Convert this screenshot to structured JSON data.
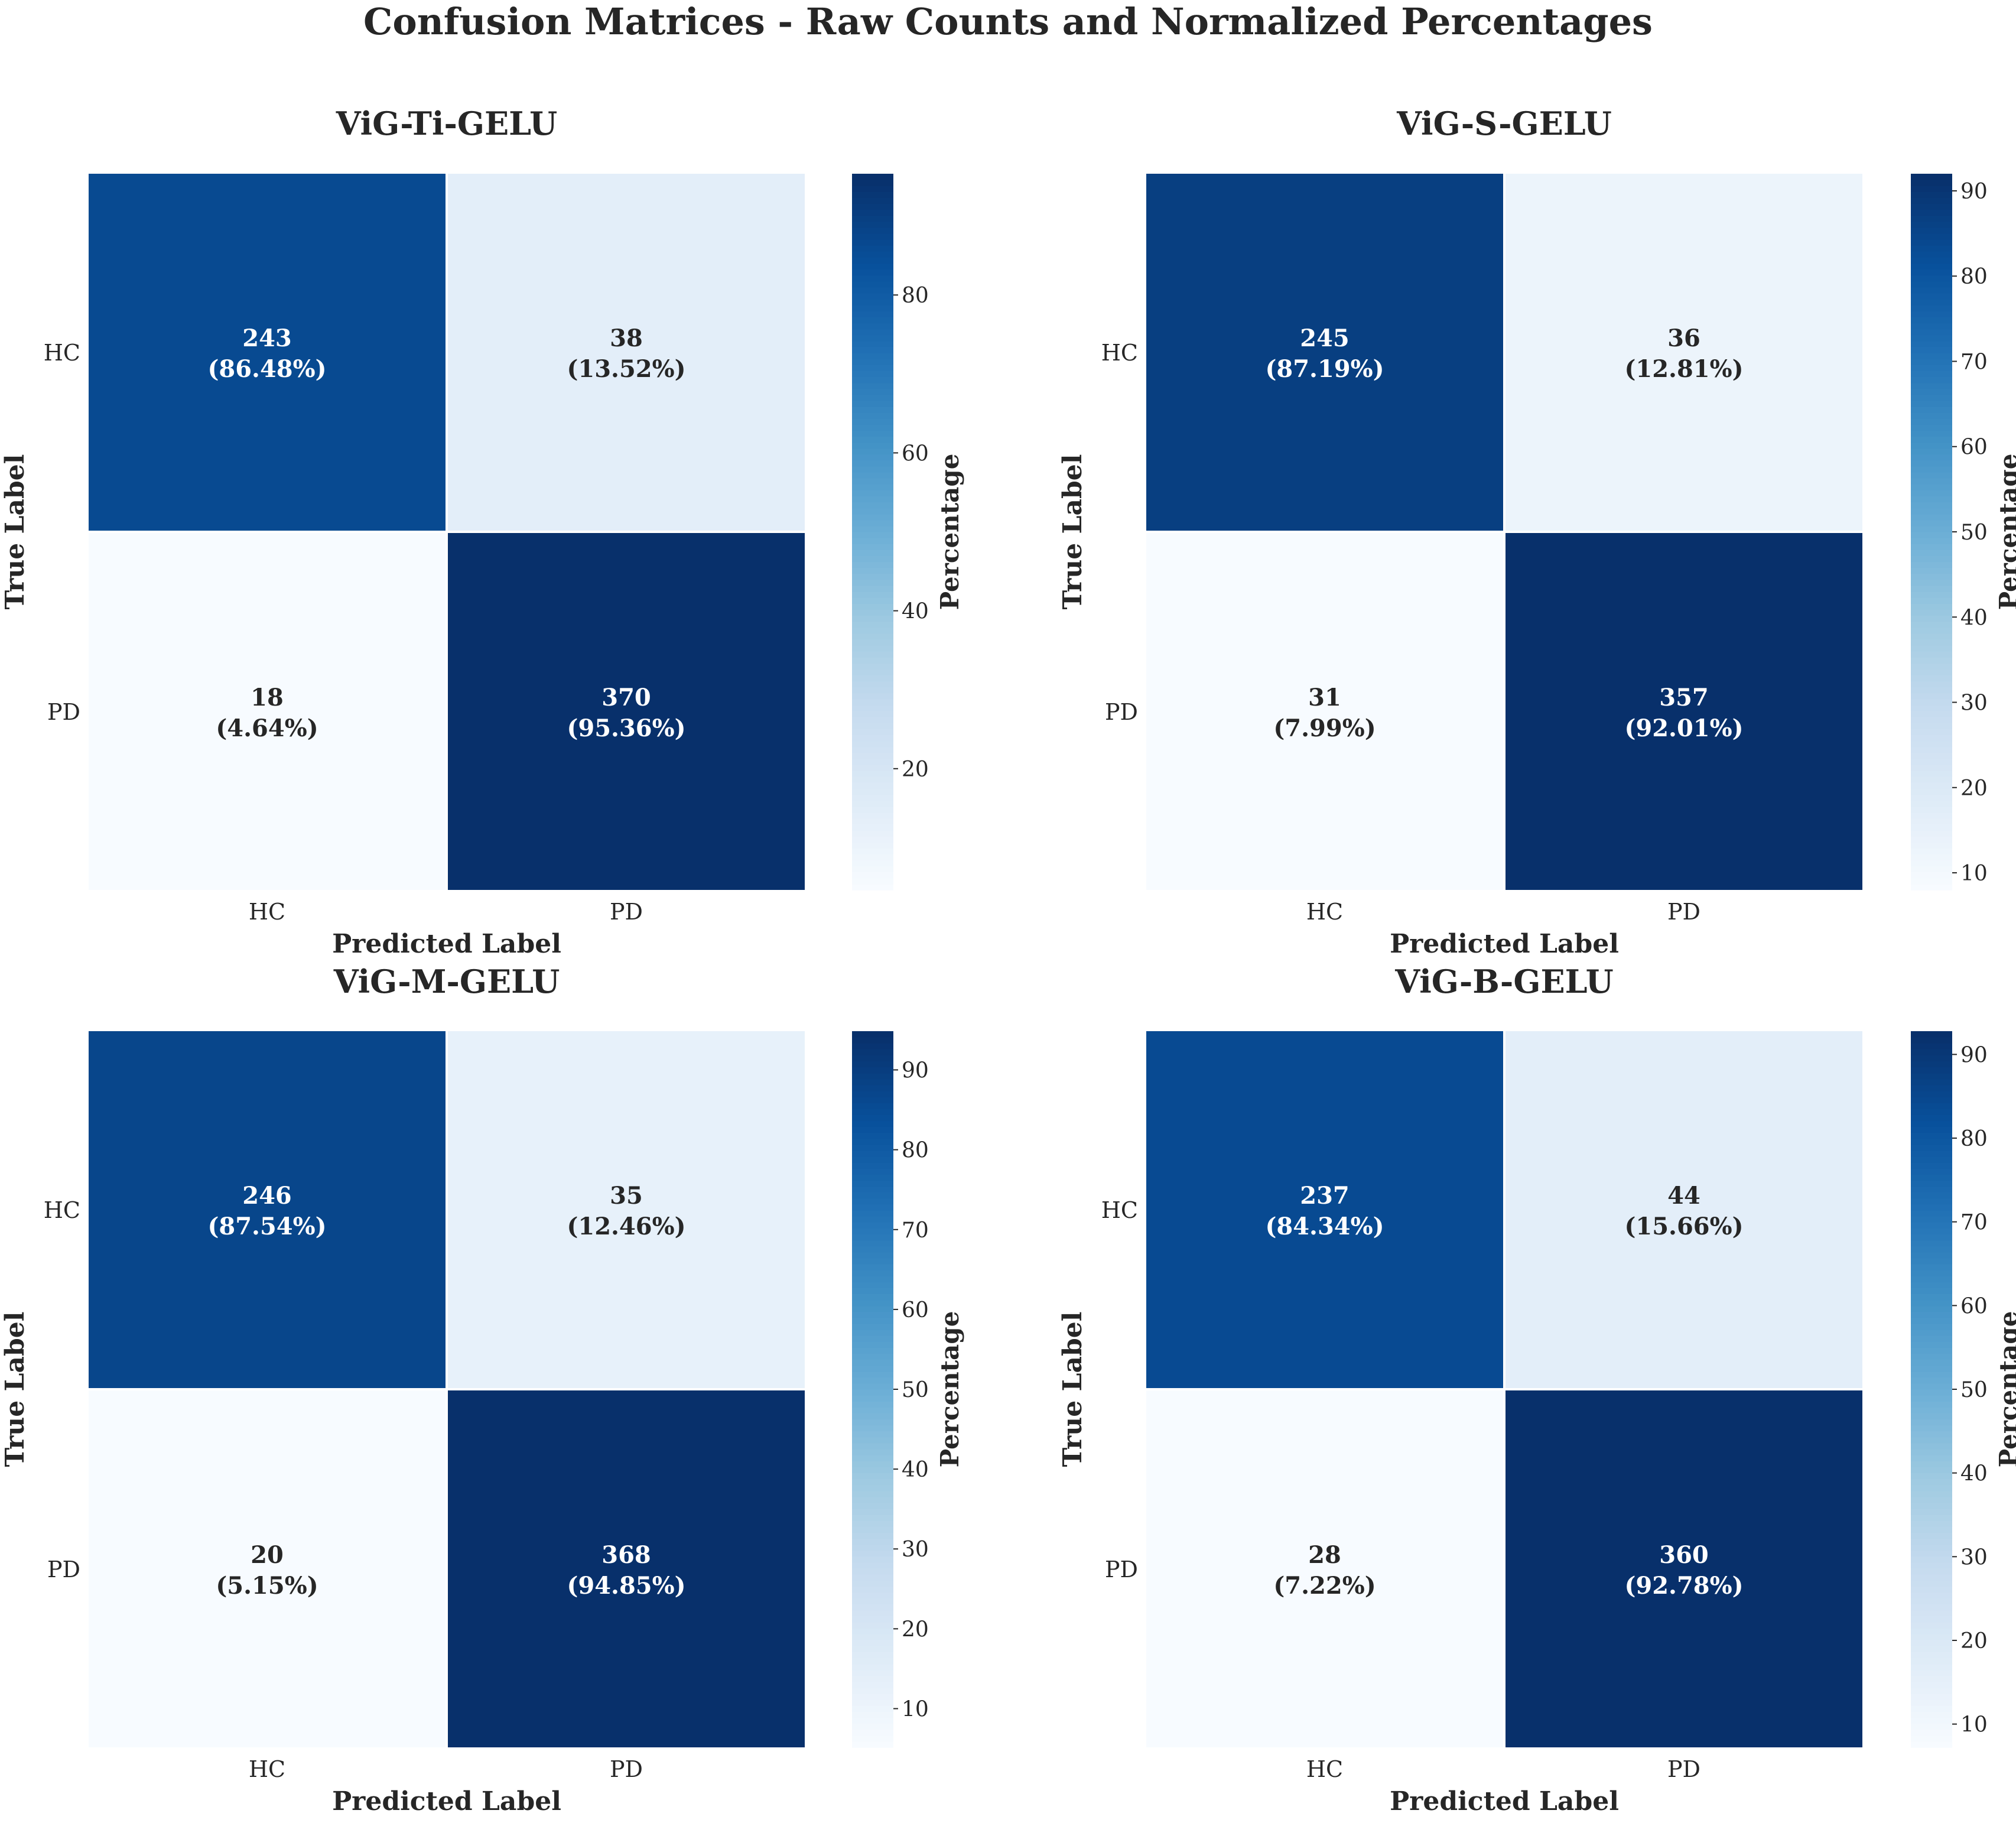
{
  "figure": {
    "title": "Confusion Matrices - Raw Counts and Normalized Percentages"
  },
  "chart_data": [
    {
      "type": "heatmap",
      "title": "ViG-Ti-GELU",
      "xlabel": "Predicted Label",
      "ylabel": "True Label",
      "x_categories": [
        "HC",
        "PD"
      ],
      "y_categories": [
        "HC",
        "PD"
      ],
      "counts": [
        [
          243,
          38
        ],
        [
          18,
          370
        ]
      ],
      "percentages": [
        [
          86.48,
          13.52
        ],
        [
          4.64,
          95.36
        ]
      ],
      "colorbar": {
        "label": "Percentage",
        "range": [
          4.64,
          95.36
        ],
        "ticks": [
          20,
          40,
          60,
          80
        ]
      }
    },
    {
      "type": "heatmap",
      "title": "ViG-S-GELU",
      "xlabel": "Predicted Label",
      "ylabel": "True Label",
      "x_categories": [
        "HC",
        "PD"
      ],
      "y_categories": [
        "HC",
        "PD"
      ],
      "counts": [
        [
          245,
          36
        ],
        [
          31,
          357
        ]
      ],
      "percentages": [
        [
          87.19,
          12.81
        ],
        [
          7.99,
          92.01
        ]
      ],
      "colorbar": {
        "label": "Percentage",
        "range": [
          7.99,
          92.01
        ],
        "ticks": [
          10,
          20,
          30,
          40,
          50,
          60,
          70,
          80,
          90
        ]
      }
    },
    {
      "type": "heatmap",
      "title": "ViG-M-GELU",
      "xlabel": "Predicted Label",
      "ylabel": "True Label",
      "x_categories": [
        "HC",
        "PD"
      ],
      "y_categories": [
        "HC",
        "PD"
      ],
      "counts": [
        [
          246,
          35
        ],
        [
          20,
          368
        ]
      ],
      "percentages": [
        [
          87.54,
          12.46
        ],
        [
          5.15,
          94.85
        ]
      ],
      "colorbar": {
        "label": "Percentage",
        "range": [
          5.15,
          94.85
        ],
        "ticks": [
          10,
          20,
          30,
          40,
          50,
          60,
          70,
          80,
          90
        ]
      }
    },
    {
      "type": "heatmap",
      "title": "ViG-B-GELU",
      "xlabel": "Predicted Label",
      "ylabel": "True Label",
      "x_categories": [
        "HC",
        "PD"
      ],
      "y_categories": [
        "HC",
        "PD"
      ],
      "counts": [
        [
          237,
          44
        ],
        [
          28,
          360
        ]
      ],
      "percentages": [
        [
          84.34,
          15.66
        ],
        [
          7.22,
          92.78
        ]
      ],
      "colorbar": {
        "label": "Percentage",
        "range": [
          7.22,
          92.78
        ],
        "ticks": [
          10,
          20,
          30,
          40,
          50,
          60,
          70,
          80,
          90
        ]
      }
    }
  ],
  "colors": {
    "cmap": [
      "#f7fbff",
      "#deebf7",
      "#c6dbef",
      "#9ecae1",
      "#6baed6",
      "#4292c6",
      "#2171b5",
      "#08519c",
      "#08306b"
    ],
    "text_dark": "#262626",
    "text_light": "#ffffff"
  }
}
